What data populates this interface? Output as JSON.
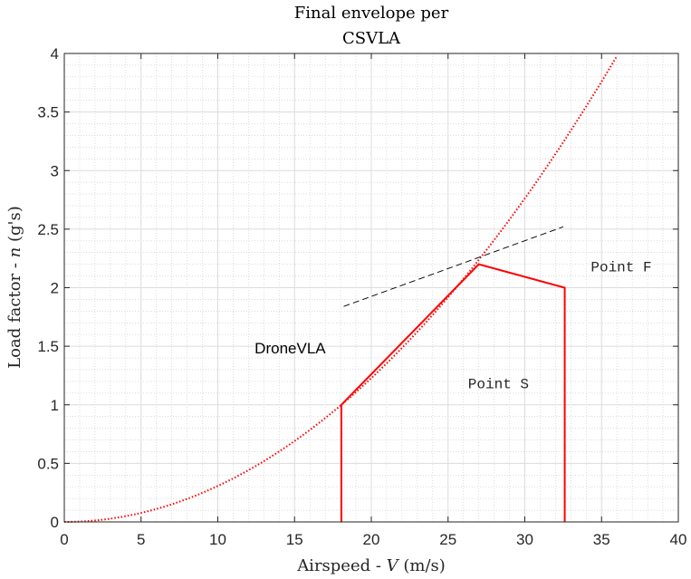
{
  "chart_data": {
    "type": "line",
    "title_lines": [
      "Final envelope per",
      "CSVLA"
    ],
    "xlabel_prefix": "Airspeed - ",
    "xlabel_var": "V",
    "xlabel_unit": " (m/s)",
    "ylabel_prefix": "Load factor - ",
    "ylabel_var": "n",
    "ylabel_unit": " (g's)",
    "xlim": [
      0,
      40
    ],
    "ylim": [
      0,
      4
    ],
    "xticks": [
      "0",
      "5",
      "10",
      "15",
      "20",
      "25",
      "30",
      "35",
      "40"
    ],
    "yticks": [
      "0",
      "0.5",
      "1",
      "1.5",
      "2",
      "2.5",
      "3",
      "3.5",
      "4"
    ],
    "grid": true,
    "minor_grid": true,
    "series": [
      {
        "style": "dotted",
        "color": "#ff0000",
        "formula": "n = (V / 18.05)^2",
        "x_range": [
          0,
          36.2
        ]
      },
      {
        "style": "solid",
        "color": "#ff0000",
        "x": [
          18.05,
          18.05,
          27.0,
          32.6,
          32.6
        ],
        "y": [
          0,
          1.0,
          2.2,
          2.0,
          0
        ]
      },
      {
        "style": "dashed",
        "color": "#000000",
        "x": [
          18.2,
          32.5
        ],
        "y": [
          1.84,
          2.52
        ]
      }
    ],
    "annotations": [
      {
        "text": "DroneVLA",
        "x": 12.4,
        "y": 1.44,
        "style": "sans"
      },
      {
        "text": "Point S",
        "x": 26.3,
        "y": 1.14,
        "style": "mono"
      },
      {
        "text": "Point F",
        "x": 34.3,
        "y": 2.14,
        "style": "mono"
      }
    ]
  }
}
